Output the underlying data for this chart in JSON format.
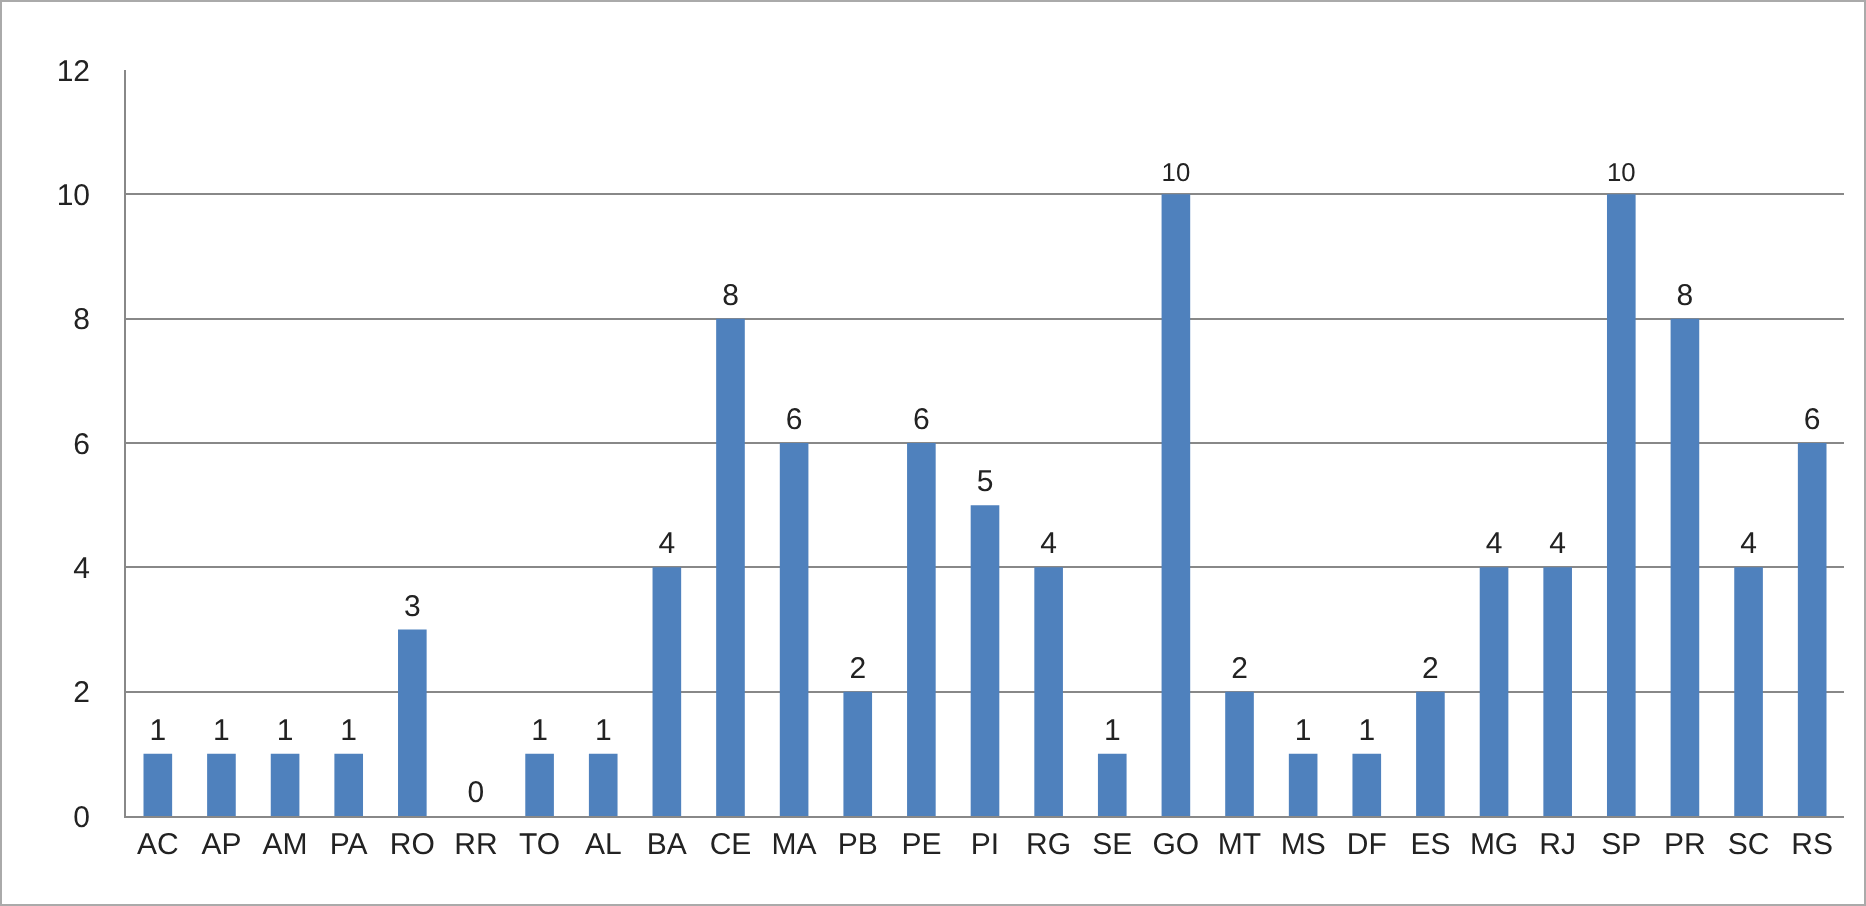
{
  "chart_data": {
    "type": "bar",
    "categories": [
      "AC",
      "AP",
      "AM",
      "PA",
      "RO",
      "RR",
      "TO",
      "AL",
      "BA",
      "CE",
      "MA",
      "PB",
      "PE",
      "PI",
      "RG",
      "SE",
      "GO",
      "MT",
      "MS",
      "DF",
      "ES",
      "MG",
      "RJ",
      "SP",
      "PR",
      "SC",
      "RS"
    ],
    "values": [
      1,
      1,
      1,
      1,
      3,
      0,
      1,
      1,
      4,
      8,
      6,
      2,
      6,
      5,
      4,
      1,
      10,
      2,
      1,
      1,
      2,
      4,
      4,
      10,
      8,
      4,
      6
    ],
    "color": "#4f81bd",
    "ylim": [
      0,
      12
    ],
    "yticks": [
      0,
      2,
      4,
      6,
      8,
      10,
      12
    ],
    "grid": "y",
    "data_labels": true,
    "legend": false
  }
}
